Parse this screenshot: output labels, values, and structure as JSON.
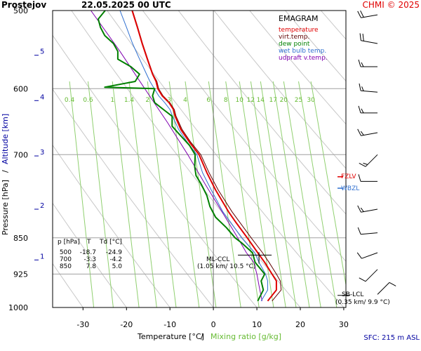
{
  "header": {
    "station": "Prostejov",
    "datetime": "22.05.2025 00 UTC",
    "credit": "CHMI © 2025"
  },
  "footer": {
    "sfc": "SFC: 215 m ASL"
  },
  "colors": {
    "temperature": "#e00000",
    "virt_temp": "#600000",
    "dew_point": "#008000",
    "wet_bulb": "#3070d0",
    "udpraft": "#8000b0",
    "mixing": "#90d070",
    "dry_adiabat": "#c8c8c8",
    "grid": "#a0a0a0",
    "altitude": "#0000a0"
  },
  "chart_data": {
    "type": "line",
    "title": "EMAGRAM",
    "xlabel_main": "Temperature [°C]",
    "xlabel_sep": "/",
    "xlabel_mixing": "Mixing ratio [g/kg]",
    "ylabel_main": "Pressure [hPa]",
    "ylabel_sep": "/",
    "ylabel_alt": "Altitude [km]",
    "xlim": [
      -37,
      30.5
    ],
    "ylim": [
      1000,
      500
    ],
    "x_ticks": [
      -30,
      -20,
      -10,
      0,
      10,
      20,
      30
    ],
    "p_ticks": [
      500,
      600,
      700,
      850,
      925,
      1000
    ],
    "alt_ticks": [
      {
        "label": "5",
        "p": 555
      },
      {
        "label": "4",
        "p": 617
      },
      {
        "label": "3",
        "p": 702
      },
      {
        "label": "2",
        "p": 795
      },
      {
        "label": "1",
        "p": 895
      }
    ],
    "mixing_labels": [
      "0.4",
      "0.6",
      "1",
      "1.4",
      "2",
      "3",
      "4",
      "6",
      "8",
      "10",
      "12",
      "14",
      "17",
      "20",
      "25",
      "30"
    ],
    "mixing_ratios": [
      0.4,
      0.6,
      1,
      1.4,
      2,
      3,
      4,
      6,
      8,
      10,
      12,
      14,
      17,
      20,
      25,
      30
    ],
    "legend": [
      {
        "key": "temperature",
        "label": "temperature"
      },
      {
        "key": "virt_temp",
        "label": "virt.temp."
      },
      {
        "key": "dew_point",
        "label": "dew point"
      },
      {
        "key": "wet_bulb",
        "label": "wet bulb temp."
      },
      {
        "key": "udpraft",
        "label": "udpraft v.temp."
      }
    ],
    "series": {
      "temperature": {
        "p": [
          985,
          960,
          940,
          925,
          900,
          880,
          850,
          820,
          800,
          760,
          730,
          700,
          680,
          660,
          640,
          630,
          620,
          610,
          600,
          590,
          580,
          560,
          540,
          520,
          500
        ],
        "t": [
          12.5,
          14.5,
          14.5,
          13.5,
          11.8,
          10.2,
          7.8,
          5.2,
          3.5,
          0.5,
          -1.5,
          -3.3,
          -5.5,
          -7.5,
          -8.8,
          -9.2,
          -10.2,
          -11.8,
          -12.8,
          -13.2,
          -14.0,
          -15.2,
          -16.4,
          -17.5,
          -18.7
        ]
      },
      "virt_temp": {
        "p": [
          985,
          960,
          940,
          925,
          900,
          880,
          850,
          820,
          800,
          760,
          730,
          700,
          680,
          660,
          640,
          630,
          620,
          610,
          600,
          590,
          580,
          560,
          540,
          520,
          500
        ],
        "t": [
          13.5,
          15.6,
          15.4,
          14.5,
          12.8,
          11.3,
          8.7,
          6.1,
          4.3,
          1.1,
          -1.0,
          -2.9,
          -5.2,
          -7.2,
          -8.6,
          -9.0,
          -10.0,
          -11.6,
          -12.6,
          -13.0,
          -13.9,
          -15.1,
          -16.3,
          -17.4,
          -18.6
        ]
      },
      "dew_point": {
        "p": [
          985,
          960,
          940,
          925,
          900,
          880,
          860,
          850,
          830,
          810,
          790,
          770,
          750,
          735,
          720,
          700,
          685,
          670,
          655,
          640,
          630,
          620,
          610,
          600,
          598,
          590,
          580,
          570,
          560,
          550,
          540,
          530,
          520,
          510,
          500
        ],
        "t": [
          10.2,
          11.5,
          11.0,
          11.8,
          9.6,
          9.0,
          6.5,
          5.0,
          3.0,
          0.5,
          -0.8,
          -1.5,
          -2.8,
          -4.0,
          -4.3,
          -4.2,
          -5.5,
          -7.5,
          -9.5,
          -9.5,
          -11.5,
          -13.5,
          -14.0,
          -13.5,
          -25.0,
          -18.0,
          -17.0,
          -19.0,
          -22.0,
          -22.0,
          -23.0,
          -25.0,
          -26.0,
          -26.5,
          -24.9
        ]
      },
      "wet_bulb": {
        "p": [
          985,
          960,
          940,
          925,
          900,
          880,
          850,
          820,
          800,
          760,
          730,
          700,
          680,
          660,
          640,
          630,
          620,
          610,
          600,
          590,
          580,
          560,
          540,
          520,
          500
        ],
        "t": [
          11.0,
          12.5,
          12.5,
          12.0,
          10.5,
          9.5,
          6.5,
          4.0,
          2.2,
          -0.5,
          -2.5,
          -3.8,
          -6.0,
          -8.0,
          -9.4,
          -10.0,
          -11.2,
          -12.6,
          -13.6,
          -14.6,
          -15.4,
          -17.0,
          -18.6,
          -20.0,
          -21.5
        ]
      },
      "udpraft": {
        "p": [
          985,
          950,
          925,
          900,
          880,
          850,
          800,
          750,
          700,
          650,
          600,
          550,
          500
        ],
        "t": [
          11.2,
          10.5,
          10.0,
          9.3,
          7.6,
          5.6,
          2.0,
          -1.9,
          -5.9,
          -10.5,
          -15.8,
          -21.5,
          -28.2
        ]
      }
    },
    "table": {
      "headers": [
        "p [hPa]",
        "T",
        "Td [°C]"
      ],
      "rows": [
        [
          "500",
          "-18.7",
          "-24.9"
        ],
        [
          "700",
          "-3.3",
          "-4.2"
        ],
        [
          "850",
          "7.8",
          "5.0"
        ]
      ]
    },
    "annotations": [
      {
        "key": "ml_ccl",
        "line1": "ML-CCL",
        "line2": "(1.05 km/ 10.5 °C)",
        "p": 885,
        "t": 10.5
      },
      {
        "key": "sb_lcl",
        "line1": "SB-LCL",
        "line2": "(0.35 km/ 9.9 °C)",
        "p": 972,
        "t": 9.9
      }
    ],
    "levels": [
      {
        "key": "fzlv",
        "label": "FZLV",
        "p": 737,
        "color": "#e00000"
      },
      {
        "key": "wbzl",
        "label": "WBZL",
        "p": 757,
        "color": "#3070d0"
      }
    ],
    "wind_barbs": [
      {
        "p": 505,
        "dir": 260,
        "kt": 20
      },
      {
        "p": 540,
        "dir": 280,
        "kt": 20
      },
      {
        "p": 570,
        "dir": 270,
        "kt": 15
      },
      {
        "p": 605,
        "dir": 275,
        "kt": 15
      },
      {
        "p": 635,
        "dir": 270,
        "kt": 15
      },
      {
        "p": 665,
        "dir": 260,
        "kt": 15
      },
      {
        "p": 700,
        "dir": 225,
        "kt": 15
      },
      {
        "p": 745,
        "dir": 270,
        "kt": 10
      },
      {
        "p": 795,
        "dir": 260,
        "kt": 15
      },
      {
        "p": 840,
        "dir": 265,
        "kt": 10
      },
      {
        "p": 880,
        "dir": 250,
        "kt": 10
      },
      {
        "p": 915,
        "dir": 225,
        "kt": 10
      },
      {
        "p": 970,
        "dir": 45,
        "kt": 10
      }
    ]
  }
}
